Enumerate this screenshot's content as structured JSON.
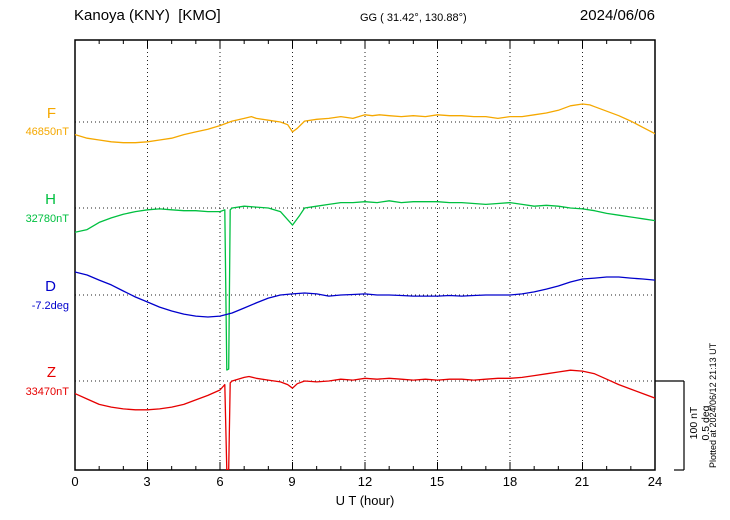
{
  "header": {
    "station_title": "Kanoya (KNY)  [KMO]",
    "gg_coords": "GG ( 31.42°, 130.88°)",
    "date": "2024/06/06"
  },
  "x_axis": {
    "label": "U T (hour)",
    "tick_labels": [
      "0",
      "3",
      "6",
      "9",
      "12",
      "15",
      "18",
      "21",
      "24"
    ]
  },
  "scale_bar": {
    "line1": "100 nT",
    "line2": "0.5 deg"
  },
  "plotted_at": "Plotted at 2024/06/12 21:13 UT",
  "chart_data": {
    "type": "line",
    "title": "Kanoya (KNY) [KMO] magnetogram 2024/06/06",
    "x_unit": "UT hour",
    "x_range": [
      0,
      24
    ],
    "grid": {
      "x_interval_hours": 3,
      "style": "dotted",
      "baselines_dotted": true
    },
    "scale": {
      "nT_per_division": 100,
      "deg_per_division": 0.5
    },
    "series": [
      {
        "name": "F",
        "unit": "nT",
        "baseline_value": 46850,
        "baseline_label": "46850nT",
        "color": "#f5a800",
        "points": [
          [
            0,
            -14
          ],
          [
            0.5,
            -18
          ],
          [
            1,
            -20
          ],
          [
            1.5,
            -22
          ],
          [
            2,
            -23
          ],
          [
            2.5,
            -23
          ],
          [
            3,
            -22
          ],
          [
            3.5,
            -20
          ],
          [
            4,
            -18
          ],
          [
            4.5,
            -14
          ],
          [
            5,
            -11
          ],
          [
            5.5,
            -8
          ],
          [
            6,
            -4
          ],
          [
            6.5,
            1
          ],
          [
            7,
            4
          ],
          [
            7.3,
            6
          ],
          [
            7.5,
            4
          ],
          [
            8,
            2
          ],
          [
            8.5,
            0
          ],
          [
            8.8,
            -3
          ],
          [
            9,
            -11
          ],
          [
            9.2,
            -7
          ],
          [
            9.5,
            1
          ],
          [
            10,
            3
          ],
          [
            10.5,
            4
          ],
          [
            11,
            6
          ],
          [
            11.5,
            4
          ],
          [
            12,
            8
          ],
          [
            12.3,
            7
          ],
          [
            12.6,
            8
          ],
          [
            13,
            7
          ],
          [
            13.5,
            6
          ],
          [
            14,
            7
          ],
          [
            14.5,
            6
          ],
          [
            15,
            8
          ],
          [
            15.5,
            7
          ],
          [
            16,
            7
          ],
          [
            16.5,
            6
          ],
          [
            17,
            6
          ],
          [
            17.5,
            4
          ],
          [
            18,
            6
          ],
          [
            18.5,
            6
          ],
          [
            19,
            8
          ],
          [
            19.5,
            10
          ],
          [
            20,
            13
          ],
          [
            20.5,
            18
          ],
          [
            21,
            20
          ],
          [
            21.3,
            19
          ],
          [
            21.5,
            17
          ],
          [
            22,
            12
          ],
          [
            22.5,
            7
          ],
          [
            23,
            1
          ],
          [
            23.5,
            -6
          ],
          [
            24,
            -13
          ]
        ]
      },
      {
        "name": "H",
        "unit": "nT",
        "baseline_value": 32780,
        "baseline_label": "32780nT",
        "color": "#00c040",
        "points": [
          [
            0,
            -27
          ],
          [
            0.5,
            -24
          ],
          [
            1,
            -16
          ],
          [
            1.5,
            -11
          ],
          [
            2,
            -7
          ],
          [
            2.5,
            -4
          ],
          [
            3,
            -2
          ],
          [
            3.5,
            -1
          ],
          [
            4,
            -2
          ],
          [
            4.5,
            -3
          ],
          [
            5,
            -3
          ],
          [
            5.5,
            -4
          ],
          [
            6,
            -4
          ],
          [
            6.2,
            -2
          ],
          [
            6.28,
            -180
          ],
          [
            6.36,
            -179
          ],
          [
            6.42,
            -2
          ],
          [
            6.5,
            0
          ],
          [
            7,
            2
          ],
          [
            7.5,
            1
          ],
          [
            8,
            0
          ],
          [
            8.5,
            -4
          ],
          [
            9,
            -19
          ],
          [
            9.3,
            -8
          ],
          [
            9.5,
            0
          ],
          [
            10,
            2
          ],
          [
            10.5,
            4
          ],
          [
            11,
            6
          ],
          [
            11.5,
            6
          ],
          [
            12,
            7
          ],
          [
            12.5,
            6
          ],
          [
            13,
            8
          ],
          [
            13.5,
            6
          ],
          [
            14,
            7
          ],
          [
            14.5,
            7
          ],
          [
            15,
            7
          ],
          [
            15.5,
            6
          ],
          [
            16,
            6
          ],
          [
            16.5,
            5
          ],
          [
            17,
            4
          ],
          [
            17.5,
            5
          ],
          [
            18,
            6
          ],
          [
            18.5,
            4
          ],
          [
            19,
            2
          ],
          [
            19.5,
            3
          ],
          [
            20,
            2
          ],
          [
            20.5,
            0
          ],
          [
            21,
            -1
          ],
          [
            21.5,
            -3
          ],
          [
            22,
            -6
          ],
          [
            22.5,
            -8
          ],
          [
            23,
            -10
          ],
          [
            23.5,
            -12
          ],
          [
            24,
            -14
          ]
        ]
      },
      {
        "name": "D",
        "unit": "deg",
        "baseline_value": -7.2,
        "baseline_label": "-7.2deg",
        "color": "#0000cc",
        "points": [
          [
            0,
            0.128
          ],
          [
            0.5,
            0.111
          ],
          [
            1,
            0.083
          ],
          [
            1.5,
            0.056
          ],
          [
            2,
            0.022
          ],
          [
            2.5,
            -0.011
          ],
          [
            3,
            -0.039
          ],
          [
            3.5,
            -0.067
          ],
          [
            4,
            -0.089
          ],
          [
            4.5,
            -0.106
          ],
          [
            5,
            -0.117
          ],
          [
            5.5,
            -0.122
          ],
          [
            6,
            -0.117
          ],
          [
            6.5,
            -0.1
          ],
          [
            7,
            -0.072
          ],
          [
            7.5,
            -0.044
          ],
          [
            8,
            -0.017
          ],
          [
            8.5,
            0
          ],
          [
            9,
            0.006
          ],
          [
            9.5,
            0.011
          ],
          [
            10,
            0.006
          ],
          [
            10.5,
            -0.006
          ],
          [
            11,
            0
          ],
          [
            11.5,
            0.003
          ],
          [
            12,
            0.006
          ],
          [
            12.5,
            0
          ],
          [
            13,
            0
          ],
          [
            13.5,
            -0.003
          ],
          [
            14,
            -0.006
          ],
          [
            14.5,
            -0.006
          ],
          [
            15,
            -0.006
          ],
          [
            15.5,
            -0.003
          ],
          [
            16,
            -0.006
          ],
          [
            16.5,
            -0.003
          ],
          [
            17,
            0
          ],
          [
            17.5,
            0
          ],
          [
            18,
            0
          ],
          [
            18.5,
            0.006
          ],
          [
            19,
            0.017
          ],
          [
            19.5,
            0.033
          ],
          [
            20,
            0.05
          ],
          [
            20.5,
            0.072
          ],
          [
            21,
            0.089
          ],
          [
            21.5,
            0.094
          ],
          [
            22,
            0.1
          ],
          [
            22.5,
            0.1
          ],
          [
            23,
            0.094
          ],
          [
            23.5,
            0.089
          ],
          [
            24,
            0.083
          ]
        ]
      },
      {
        "name": "Z",
        "unit": "nT",
        "baseline_value": 33470,
        "baseline_label": "33470nT",
        "color": "#e60000",
        "points": [
          [
            0,
            -14
          ],
          [
            0.5,
            -20
          ],
          [
            1,
            -26
          ],
          [
            1.5,
            -29
          ],
          [
            2,
            -31
          ],
          [
            2.5,
            -32
          ],
          [
            3,
            -32
          ],
          [
            3.5,
            -31
          ],
          [
            4,
            -29
          ],
          [
            4.5,
            -26
          ],
          [
            5,
            -21
          ],
          [
            5.5,
            -16
          ],
          [
            6,
            -10
          ],
          [
            6.2,
            -4
          ],
          [
            6.28,
            -99
          ],
          [
            6.36,
            -98
          ],
          [
            6.42,
            -2
          ],
          [
            6.5,
            0
          ],
          [
            7,
            4
          ],
          [
            7.2,
            5
          ],
          [
            7.5,
            3
          ],
          [
            8,
            1
          ],
          [
            8.5,
            -1
          ],
          [
            8.8,
            -4
          ],
          [
            9,
            -8
          ],
          [
            9.2,
            -3
          ],
          [
            9.5,
            0
          ],
          [
            10,
            -1
          ],
          [
            10.5,
            0
          ],
          [
            11,
            2
          ],
          [
            11.5,
            1
          ],
          [
            12,
            3
          ],
          [
            12.5,
            2
          ],
          [
            13,
            3
          ],
          [
            13.5,
            2
          ],
          [
            14,
            1
          ],
          [
            14.5,
            2
          ],
          [
            15,
            1
          ],
          [
            15.5,
            2
          ],
          [
            16,
            2
          ],
          [
            16.5,
            1
          ],
          [
            17,
            2
          ],
          [
            17.5,
            3
          ],
          [
            18,
            3
          ],
          [
            18.5,
            4
          ],
          [
            19,
            6
          ],
          [
            19.5,
            8
          ],
          [
            20,
            10
          ],
          [
            20.5,
            12
          ],
          [
            21,
            11
          ],
          [
            21.5,
            8
          ],
          [
            22,
            2
          ],
          [
            22.5,
            -4
          ],
          [
            23,
            -9
          ],
          [
            23.5,
            -14
          ],
          [
            24,
            -19
          ]
        ]
      }
    ]
  }
}
